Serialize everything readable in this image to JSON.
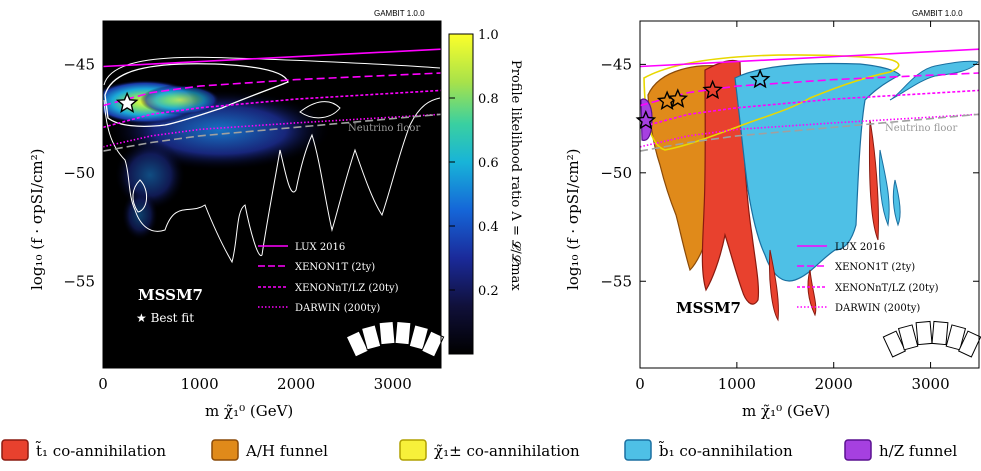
{
  "left_panel": {
    "watermark": "GAMBIT 1.0.0",
    "model_label": "MSSM7",
    "best_fit_label": "★ Best fit",
    "neutrino_floor_label": "Neutrino floor",
    "colorbar": {
      "label": "Profile likelihood ratio Λ = 𝓛/𝓛max",
      "ticks": [
        "1.0",
        "0.8",
        "0.6",
        "0.4",
        "0.2"
      ],
      "tick_values": [
        1.0,
        0.8,
        0.6,
        0.4,
        0.2
      ]
    },
    "legend": [
      "LUX 2016",
      "XENON1T (2ty)",
      "XENONnT/LZ (20ty)",
      "DARWIN (200ty)"
    ]
  },
  "right_panel": {
    "watermark": "GAMBIT 1.0.0",
    "model_label": "MSSM7",
    "neutrino_floor_label": "Neutrino floor",
    "legend": [
      "LUX 2016",
      "XENON1T (2ty)",
      "XENONnT/LZ (20ty)",
      "DARWIN (200ty)"
    ]
  },
  "axes": {
    "xlabel": "m χ̃₁⁰ (GeV)",
    "ylabel": "log₁₀ (f · σpSI/cm²)",
    "xticks": [
      "0",
      "1000",
      "2000",
      "3000"
    ],
    "yticks": [
      "−45",
      "−50",
      "−55"
    ]
  },
  "bottom_legend": [
    {
      "label": "t̃₁ co-annihilation",
      "color": "#e8412e",
      "border": "#8a1a10"
    },
    {
      "label": "A/H funnel",
      "color": "#e08a1a",
      "border": "#8a4a08"
    },
    {
      "label": "χ̃₁± co-annihilation",
      "color": "#f7f03a",
      "border": "#b0a000"
    },
    {
      "label": "b̃₁ co-annihilation",
      "color": "#4ec0e6",
      "border": "#1a6fa0"
    },
    {
      "label": "h/Z funnel",
      "color": "#a640e0",
      "border": "#5a1090"
    }
  ],
  "chart_data": [
    {
      "type": "heatmap",
      "title": "",
      "xlabel": "m χ̃₁⁰ (GeV)",
      "ylabel": "log₁₀ (f · σpSI/cm²)",
      "xlim": [
        0,
        3500
      ],
      "ylim": [
        -59,
        -43
      ],
      "series": [
        {
          "name": "LUX 2016",
          "style": "solid",
          "color": "#ff00ff",
          "x": [
            0,
            3500
          ],
          "y": [
            -45.1,
            -44.3
          ]
        },
        {
          "name": "XENON1T (2ty)",
          "style": "dashed",
          "color": "#ff00ff",
          "x": [
            0,
            500,
            1000,
            2000,
            3500
          ],
          "y": [
            -46.9,
            -46.3,
            -46.0,
            -45.7,
            -45.4
          ]
        },
        {
          "name": "XENONnT/LZ (20ty)",
          "style": "dotted",
          "color": "#ff00ff",
          "x": [
            0,
            500,
            1000,
            2000,
            3500
          ],
          "y": [
            -47.9,
            -47.3,
            -47.0,
            -46.6,
            -46.2
          ]
        },
        {
          "name": "DARWIN (200ty)",
          "style": "dotted",
          "color": "#ff00ff",
          "x": [
            0,
            500,
            1000,
            2000,
            3500
          ],
          "y": [
            -48.8,
            -48.3,
            -48.0,
            -47.7,
            -47.3
          ]
        },
        {
          "name": "Neutrino floor",
          "style": "dashed",
          "color": "#a0a0a0",
          "x": [
            0,
            500,
            1000,
            2000,
            3500
          ],
          "y": [
            -49.0,
            -48.6,
            -48.3,
            -47.9,
            -47.3
          ]
        }
      ],
      "best_fit": {
        "x": 250,
        "y": -46.8
      }
    },
    {
      "type": "area",
      "title": "",
      "xlabel": "m χ̃₁⁰ (GeV)",
      "ylabel": "log₁₀ (f · σpSI/cm²)",
      "xlim": [
        0,
        3500
      ],
      "ylim": [
        -59,
        -43
      ],
      "best_fit_points": [
        {
          "x": 60,
          "y": -47.6,
          "color": "#a640e0"
        },
        {
          "x": 280,
          "y": -46.7,
          "color": "#e08a1a"
        },
        {
          "x": 390,
          "y": -46.6,
          "color": "#e08a1a"
        },
        {
          "x": 750,
          "y": -46.2,
          "color": "#e8412e"
        },
        {
          "x": 1240,
          "y": -45.7,
          "color": "#4ec0e6"
        }
      ]
    }
  ]
}
